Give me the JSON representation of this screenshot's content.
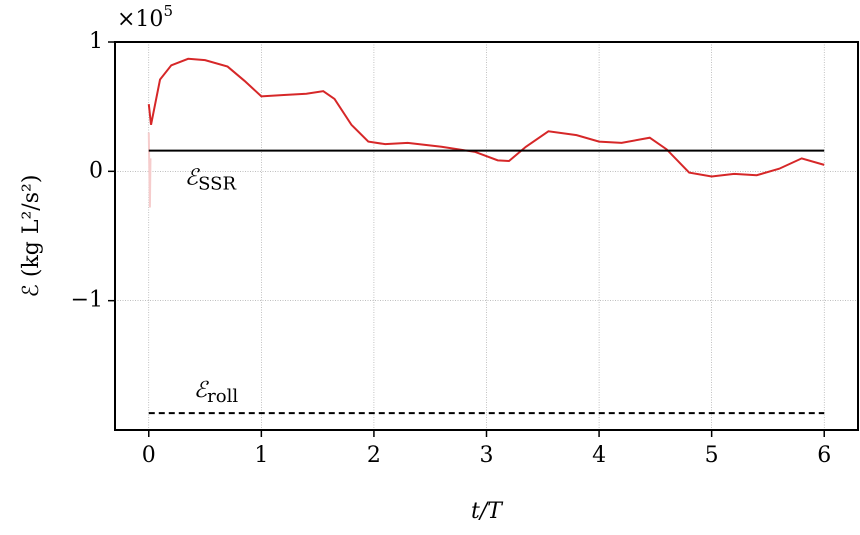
{
  "chart_data": {
    "type": "line",
    "xlabel": "t/T",
    "ylabel": "ℰ  (kg L²/s²)",
    "y_multiplier": {
      "base": "×10",
      "exponent": "5"
    },
    "xlim": [
      -0.3,
      6.3
    ],
    "ylim": [
      -2,
      1
    ],
    "xticks": [
      0,
      1,
      2,
      3,
      4,
      5,
      6
    ],
    "yticks": [
      {
        "value": -1,
        "label": "−1"
      },
      0,
      1
    ],
    "grid": true,
    "series": [
      {
        "color": "#d62728",
        "x": [
          0,
          0.02,
          0.1,
          0.2,
          0.35,
          0.5,
          0.7,
          0.85,
          1.0,
          1.2,
          1.4,
          1.55,
          1.65,
          1.8,
          1.95,
          2.1,
          2.3,
          2.6,
          2.9,
          3.1,
          3.2,
          3.35,
          3.55,
          3.8,
          4.0,
          4.2,
          4.45,
          4.6,
          4.8,
          5.0,
          5.2,
          5.4,
          5.6,
          5.8,
          6.0
        ],
        "values": [
          0.52,
          0.36,
          0.71,
          0.82,
          0.87,
          0.86,
          0.81,
          0.7,
          0.58,
          0.59,
          0.6,
          0.62,
          0.56,
          0.36,
          0.23,
          0.21,
          0.22,
          0.19,
          0.15,
          0.085,
          0.08,
          0.19,
          0.31,
          0.28,
          0.23,
          0.22,
          0.26,
          0.17,
          -0.01,
          -0.04,
          -0.02,
          -0.03,
          0.02,
          0.1,
          0.05
        ]
      },
      {
        "color": "#f6cccc",
        "x": [
          0,
          0.01,
          0.015
        ],
        "values": [
          0.3,
          -0.28,
          0.1
        ]
      }
    ],
    "hlines": [
      {
        "value": 0.16,
        "xmin": 0,
        "xmax": 6,
        "dashed": false,
        "symbol": "ℰ",
        "subscript": "SSR"
      },
      {
        "value": -1.87,
        "xmin": 0,
        "xmax": 6,
        "dashed": true,
        "symbol": "ℰ",
        "subscript": "roll"
      }
    ]
  }
}
